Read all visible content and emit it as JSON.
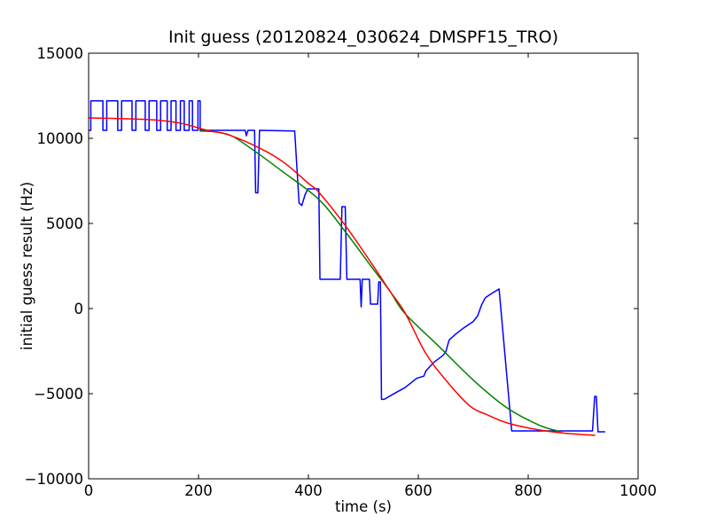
{
  "figure": {
    "background": "#ffffff",
    "frame_color": "#000000"
  },
  "chart_data": {
    "type": "line",
    "title": "Init guess (20120824_030624_DMSPF15_TRO)",
    "xlabel": "time (s)",
    "ylabel": "initial guess result (Hz)",
    "xlim": [
      0,
      1000
    ],
    "ylim": [
      -10000,
      15000
    ],
    "xticks": [
      0,
      200,
      400,
      600,
      800,
      1000
    ],
    "yticks": [
      -10000,
      -5000,
      0,
      5000,
      10000,
      15000
    ],
    "grid": false,
    "legend": false,
    "tick_direction": "in",
    "series": [
      {
        "name": "blue",
        "color": "#0000ff",
        "smooth": false,
        "points": [
          [
            0,
            10470
          ],
          [
            4,
            10470
          ],
          [
            4,
            12200
          ],
          [
            26,
            12200
          ],
          [
            26,
            10470
          ],
          [
            33,
            10470
          ],
          [
            33,
            12200
          ],
          [
            53,
            12200
          ],
          [
            53,
            10470
          ],
          [
            60,
            10470
          ],
          [
            60,
            12200
          ],
          [
            79,
            12200
          ],
          [
            79,
            10470
          ],
          [
            86,
            10470
          ],
          [
            86,
            12200
          ],
          [
            103,
            12200
          ],
          [
            103,
            10470
          ],
          [
            110,
            10470
          ],
          [
            110,
            12200
          ],
          [
            124,
            12200
          ],
          [
            124,
            10470
          ],
          [
            131,
            10470
          ],
          [
            131,
            12200
          ],
          [
            143,
            12200
          ],
          [
            143,
            10470
          ],
          [
            150,
            10470
          ],
          [
            150,
            12200
          ],
          [
            159,
            12200
          ],
          [
            159,
            10470
          ],
          [
            167,
            10470
          ],
          [
            167,
            12200
          ],
          [
            174,
            12200
          ],
          [
            174,
            10470
          ],
          [
            183,
            10470
          ],
          [
            183,
            12200
          ],
          [
            189,
            12200
          ],
          [
            189,
            10470
          ],
          [
            199,
            10470
          ],
          [
            199,
            12200
          ],
          [
            203,
            12200
          ],
          [
            203,
            10470
          ],
          [
            285,
            10470
          ],
          [
            287,
            10150
          ],
          [
            290,
            10470
          ],
          [
            302,
            10470
          ],
          [
            304,
            6800
          ],
          [
            308,
            6800
          ],
          [
            311,
            10470
          ],
          [
            375,
            10430
          ],
          [
            383,
            6200
          ],
          [
            388,
            6050
          ],
          [
            394,
            6700
          ],
          [
            399,
            7030
          ],
          [
            419,
            7030
          ],
          [
            421,
            1720
          ],
          [
            458,
            1720
          ],
          [
            461,
            5980
          ],
          [
            467,
            5980
          ],
          [
            470,
            1720
          ],
          [
            494,
            1720
          ],
          [
            496,
            100
          ],
          [
            498,
            1720
          ],
          [
            511,
            1720
          ],
          [
            513,
            260
          ],
          [
            526,
            260
          ],
          [
            528,
            1560
          ],
          [
            531,
            1560
          ],
          [
            533,
            -5330
          ],
          [
            538,
            -5330
          ],
          [
            553,
            -5050
          ],
          [
            576,
            -4640
          ],
          [
            597,
            -4100
          ],
          [
            610,
            -3970
          ],
          [
            614,
            -3650
          ],
          [
            629,
            -3140
          ],
          [
            645,
            -2750
          ],
          [
            650,
            -2550
          ],
          [
            656,
            -1850
          ],
          [
            668,
            -1500
          ],
          [
            682,
            -1150
          ],
          [
            700,
            -760
          ],
          [
            708,
            -430
          ],
          [
            715,
            200
          ],
          [
            722,
            640
          ],
          [
            735,
            920
          ],
          [
            747,
            1150
          ],
          [
            770,
            -7190
          ],
          [
            917,
            -7190
          ],
          [
            921,
            -5160
          ],
          [
            924,
            -5160
          ],
          [
            927,
            -7240
          ],
          [
            940,
            -7240
          ]
        ]
      },
      {
        "name": "green",
        "color": "#008000",
        "smooth": true,
        "points": [
          [
            202,
            10430
          ],
          [
            230,
            10380
          ],
          [
            260,
            10150
          ],
          [
            300,
            9300
          ],
          [
            352,
            8070
          ],
          [
            419,
            6410
          ],
          [
            468,
            4480
          ],
          [
            516,
            2400
          ],
          [
            548,
            1040
          ],
          [
            576,
            -300
          ],
          [
            640,
            -2300
          ],
          [
            700,
            -4200
          ],
          [
            760,
            -5800
          ],
          [
            820,
            -6850
          ],
          [
            860,
            -7240
          ]
        ]
      },
      {
        "name": "red",
        "color": "#ff0000",
        "smooth": true,
        "points": [
          [
            0,
            11200
          ],
          [
            60,
            11160
          ],
          [
            120,
            11080
          ],
          [
            170,
            10870
          ],
          [
            215,
            10470
          ],
          [
            255,
            10200
          ],
          [
            311,
            9430
          ],
          [
            355,
            8590
          ],
          [
            400,
            7350
          ],
          [
            419,
            6830
          ],
          [
            468,
            4840
          ],
          [
            516,
            2600
          ],
          [
            548,
            1040
          ],
          [
            576,
            -260
          ],
          [
            613,
            -2600
          ],
          [
            650,
            -4200
          ],
          [
            693,
            -5700
          ],
          [
            726,
            -6250
          ],
          [
            760,
            -6700
          ],
          [
            806,
            -7050
          ],
          [
            860,
            -7300
          ],
          [
            922,
            -7450
          ]
        ]
      }
    ]
  }
}
